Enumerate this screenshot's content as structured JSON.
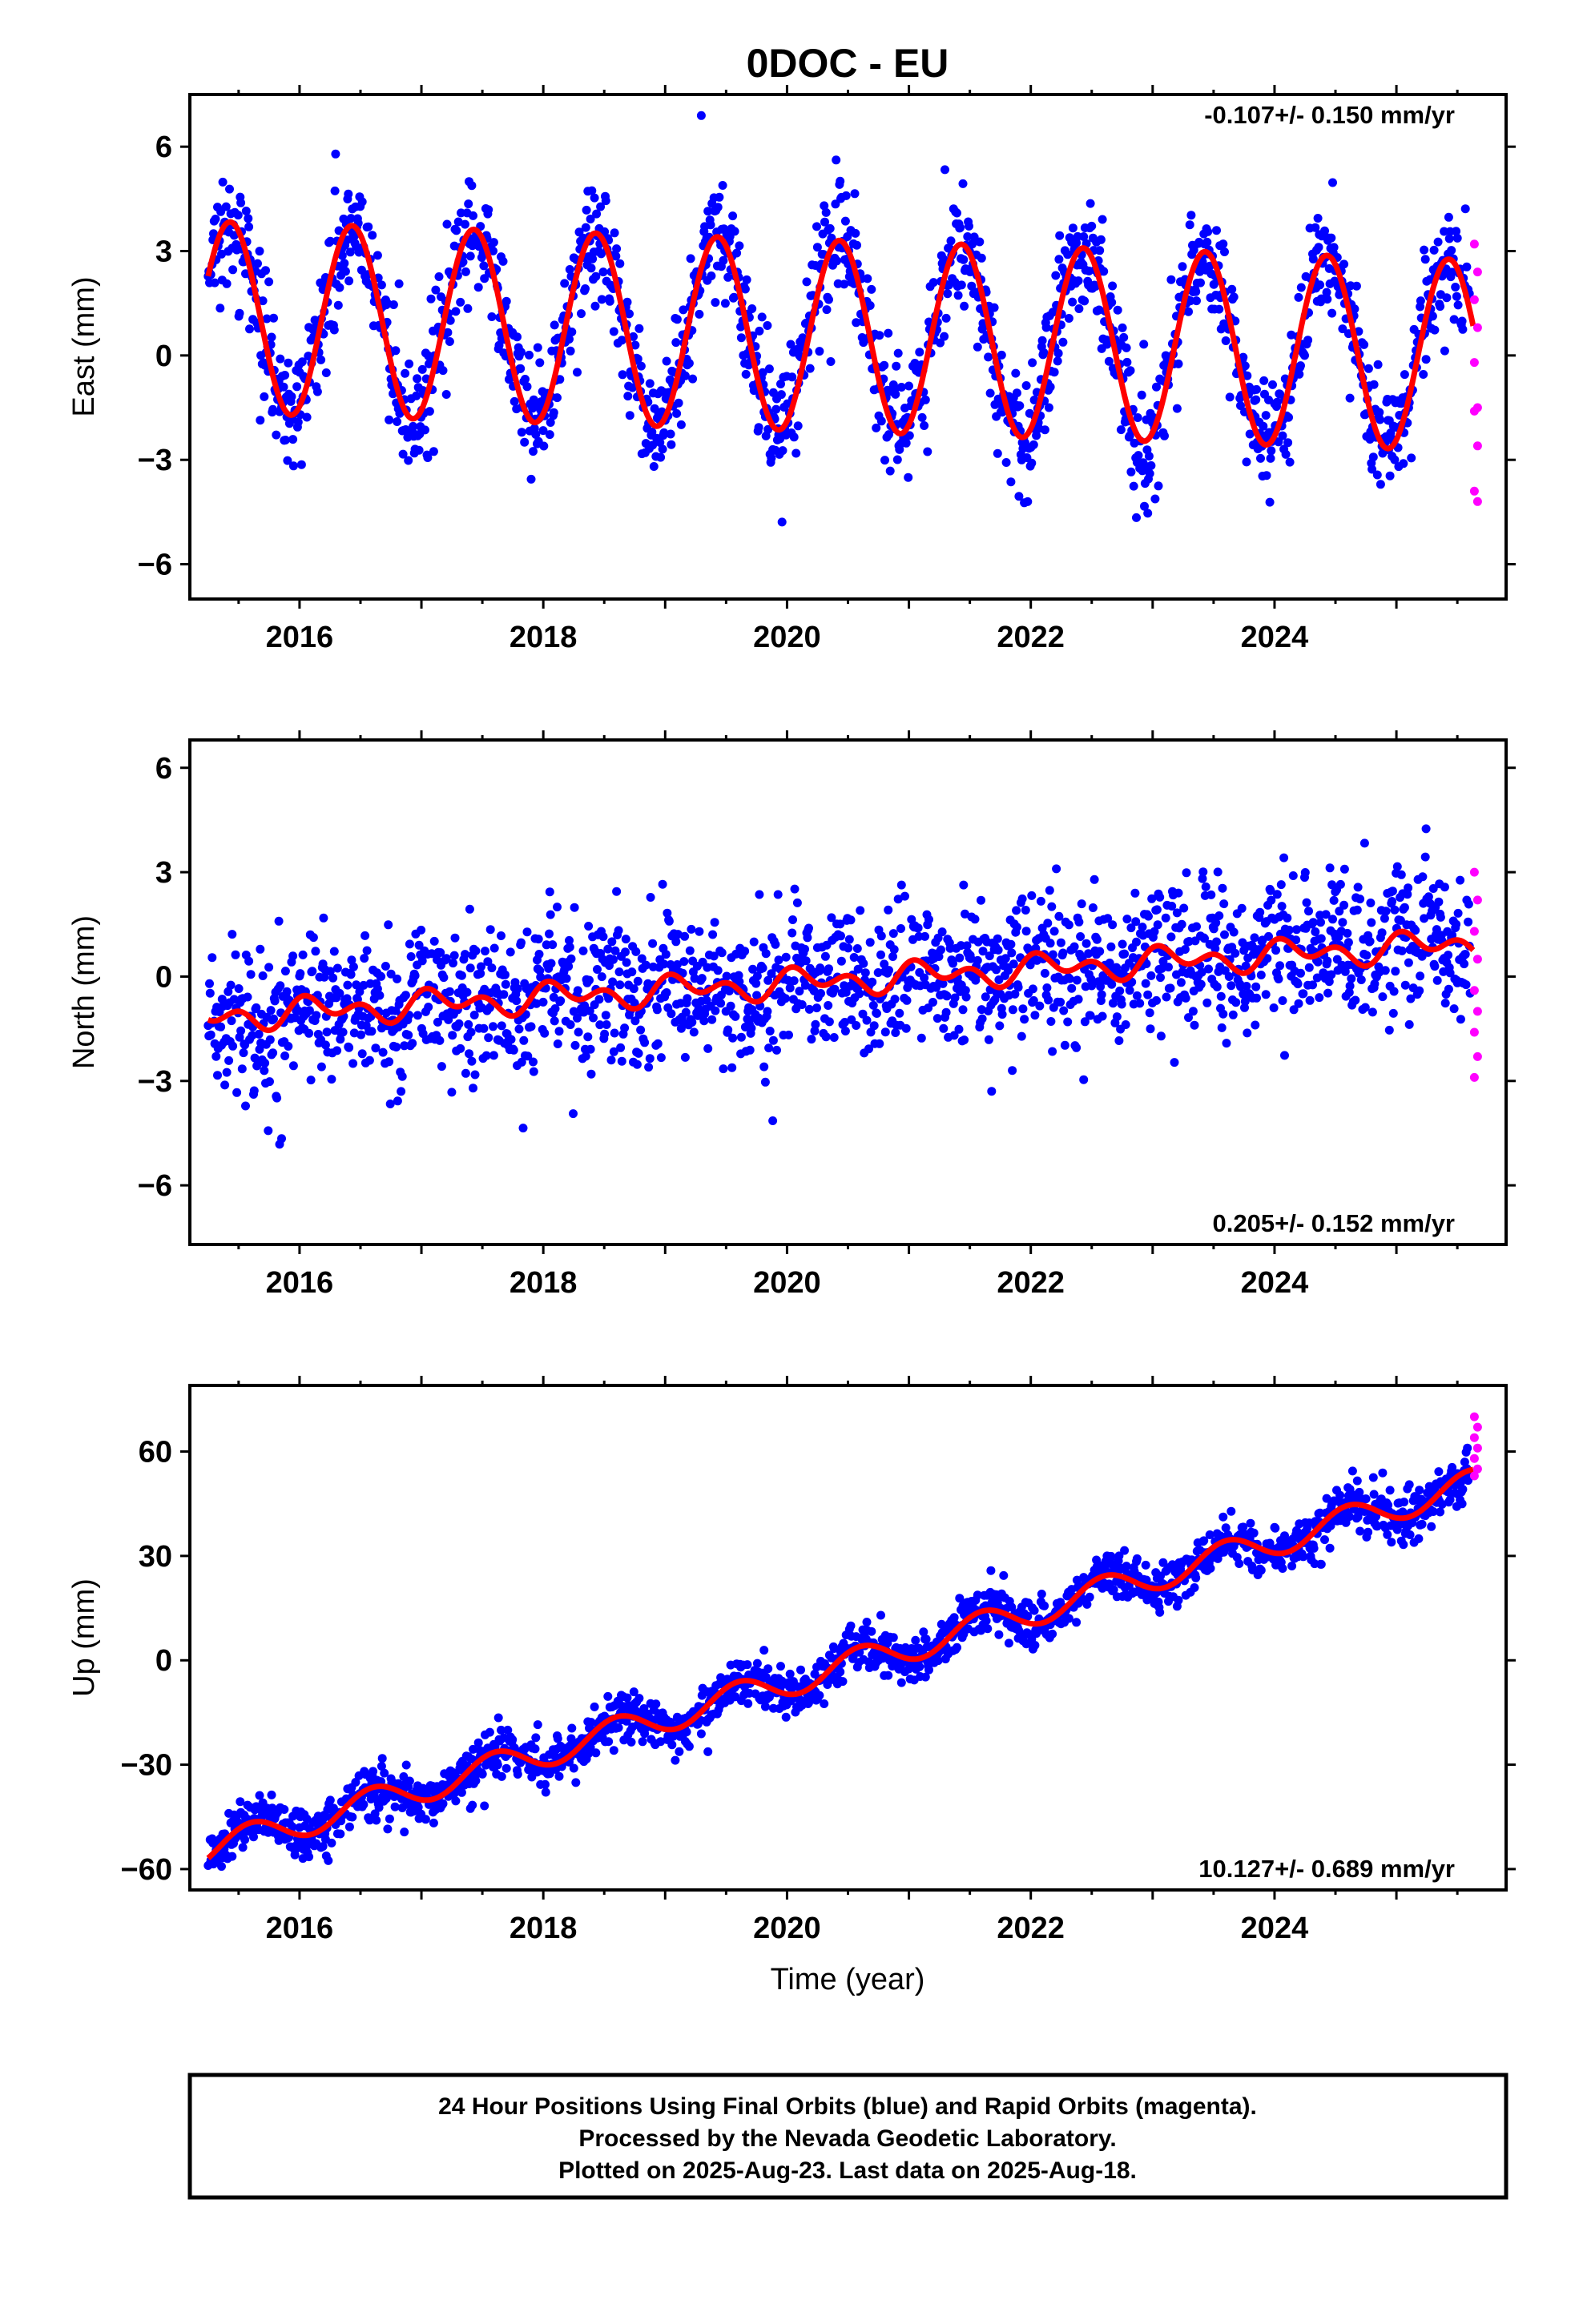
{
  "figure_title": "0DOC - EU",
  "xlabel": "Time (year)",
  "caption_lines": [
    "24 Hour Positions Using Final Orbits (blue) and Rapid Orbits (magenta).",
    "Processed by the Nevada Geodetic Laboratory.",
    "Plotted on 2025-Aug-23. Last data on 2025-Aug-18."
  ],
  "colors": {
    "final": "#0000ff",
    "rapid": "#ff00ff",
    "model": "#ff0000"
  },
  "chart_data": [
    {
      "type": "scatter",
      "name": "east",
      "ylabel": "East (mm)",
      "rate_label": "-0.107+/- 0.150 mm/yr",
      "rate_position": "top-right",
      "xlim": [
        2015.1,
        2025.9
      ],
      "ylim": [
        -7,
        7.5
      ],
      "xticks": [
        2016,
        2018,
        2020,
        2022,
        2024
      ],
      "yticks": [
        -6,
        -3,
        0,
        3,
        6
      ],
      "yticklabels": [
        "−6",
        "−3",
        "0",
        "3",
        "6"
      ],
      "data_start": 2015.25,
      "data_end": 2025.63,
      "model": {
        "offset": 0.6,
        "trend": -0.107,
        "annual_amp": 2.75,
        "annual_peak": 0.43,
        "semi_amp": 0,
        "semi_peak": 0
      },
      "noise_sd": 0.85,
      "rapid_values": [
        3.2,
        2.4,
        1.6,
        0.8,
        -0.2,
        -1.5,
        -1.6,
        -2.6,
        -3.9,
        -4.2
      ]
    },
    {
      "type": "scatter",
      "name": "north",
      "ylabel": "North (mm)",
      "rate_label": "0.205+/- 0.152 mm/yr",
      "rate_position": "bottom-right",
      "xlim": [
        2015.1,
        2025.9
      ],
      "ylim": [
        -7.7,
        6.8
      ],
      "xticks": [
        2016,
        2018,
        2020,
        2022,
        2024
      ],
      "yticks": [
        -6,
        -3,
        0,
        3,
        6
      ],
      "yticklabels": [
        "−6",
        "−3",
        "0",
        "3",
        "6"
      ],
      "data_start": 2015.25,
      "data_end": 2025.63,
      "model": {
        "offset": -0.2,
        "trend": 0.205,
        "annual_amp": 0.25,
        "annual_peak": 0.15,
        "semi_amp": 0.28,
        "semi_peak": 0.02
      },
      "noise_sd": 1.05,
      "rapid_values": [
        3.0,
        2.2,
        1.3,
        0.5,
        -0.4,
        -1.0,
        -1.6,
        -2.3,
        -2.9
      ]
    },
    {
      "type": "scatter",
      "name": "up",
      "ylabel": "Up (mm)",
      "rate_label": "10.127+/- 0.689 mm/yr",
      "rate_position": "bottom-right",
      "xlim": [
        2015.1,
        2025.9
      ],
      "ylim": [
        -66,
        79
      ],
      "xticks": [
        2016,
        2018,
        2020,
        2022,
        2024
      ],
      "yticks": [
        -60,
        -30,
        0,
        30,
        60
      ],
      "yticklabels": [
        "−60",
        "−30",
        "0",
        "30",
        "60"
      ],
      "data_start": 2015.25,
      "data_end": 2025.63,
      "model": {
        "offset": -6.3,
        "trend": 10.127,
        "annual_amp": 4.2,
        "annual_peak": 0.6,
        "semi_amp": 0,
        "semi_peak": 0
      },
      "noise_sd": 3.4,
      "rapid_values": [
        70,
        67,
        64,
        61,
        58,
        55,
        53
      ]
    }
  ]
}
